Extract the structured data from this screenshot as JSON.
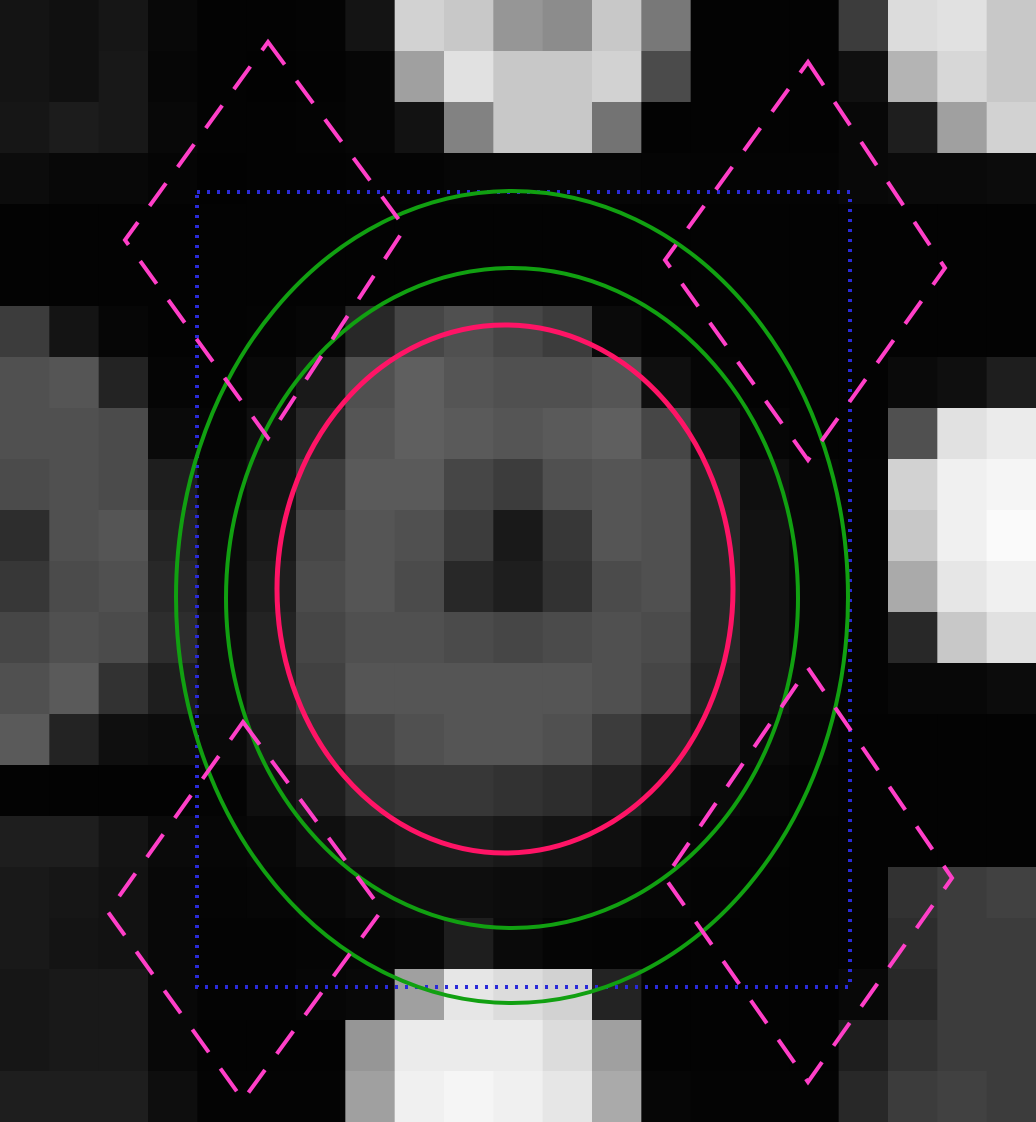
{
  "image": {
    "kind": "pixelated grayscale micrograph (zoomed crop)",
    "grid_columns": 21,
    "grid_rows": 22,
    "pixels": [
      [
        20,
        16,
        22,
        8,
        3,
        3,
        4,
        20,
        210,
        200,
        150,
        140,
        200,
        120,
        3,
        3,
        3,
        60,
        220,
        225,
        200
      ],
      [
        20,
        16,
        24,
        6,
        3,
        2,
        3,
        6,
        160,
        225,
        200,
        200,
        210,
        75,
        3,
        3,
        3,
        16,
        180,
        215,
        200
      ],
      [
        22,
        28,
        24,
        8,
        3,
        3,
        4,
        6,
        18,
        130,
        200,
        200,
        115,
        3,
        3,
        3,
        3,
        8,
        30,
        160,
        210
      ],
      [
        12,
        8,
        8,
        5,
        2,
        3,
        3,
        4,
        4,
        6,
        6,
        6,
        6,
        5,
        4,
        4,
        4,
        8,
        10,
        10,
        12
      ],
      [
        3,
        3,
        3,
        3,
        3,
        3,
        3,
        3,
        3,
        3,
        3,
        3,
        3,
        3,
        3,
        3,
        3,
        3,
        3,
        3,
        3
      ],
      [
        3,
        3,
        3,
        3,
        3,
        3,
        3,
        3,
        3,
        3,
        3,
        3,
        3,
        3,
        3,
        3,
        3,
        3,
        3,
        3,
        3
      ],
      [
        60,
        20,
        6,
        3,
        3,
        4,
        6,
        40,
        70,
        80,
        70,
        60,
        10,
        4,
        3,
        3,
        3,
        3,
        3,
        3,
        3
      ],
      [
        80,
        85,
        35,
        5,
        3,
        8,
        25,
        80,
        95,
        85,
        80,
        80,
        85,
        15,
        5,
        3,
        3,
        3,
        10,
        15,
        30
      ],
      [
        80,
        80,
        75,
        10,
        5,
        15,
        40,
        85,
        95,
        90,
        85,
        90,
        95,
        70,
        20,
        6,
        3,
        3,
        80,
        225,
        235
      ],
      [
        75,
        80,
        75,
        30,
        8,
        20,
        60,
        90,
        90,
        70,
        60,
        80,
        85,
        80,
        40,
        15,
        6,
        4,
        210,
        240,
        245
      ],
      [
        45,
        80,
        85,
        35,
        10,
        25,
        70,
        85,
        80,
        60,
        25,
        55,
        85,
        80,
        40,
        18,
        8,
        4,
        200,
        240,
        250
      ],
      [
        55,
        75,
        80,
        40,
        10,
        30,
        75,
        85,
        75,
        40,
        30,
        50,
        75,
        80,
        40,
        18,
        8,
        4,
        170,
        230,
        240
      ],
      [
        70,
        80,
        75,
        45,
        12,
        35,
        70,
        80,
        80,
        75,
        70,
        75,
        80,
        75,
        40,
        18,
        8,
        4,
        40,
        200,
        225
      ],
      [
        80,
        90,
        50,
        30,
        12,
        35,
        65,
        85,
        85,
        85,
        85,
        85,
        80,
        70,
        35,
        18,
        8,
        4,
        8,
        8,
        12
      ],
      [
        90,
        35,
        15,
        12,
        10,
        25,
        50,
        70,
        80,
        85,
        85,
        80,
        60,
        40,
        25,
        10,
        6,
        3,
        3,
        3,
        3
      ],
      [
        3,
        3,
        3,
        3,
        4,
        15,
        30,
        50,
        55,
        55,
        50,
        45,
        35,
        20,
        10,
        6,
        4,
        3,
        3,
        3,
        3
      ],
      [
        30,
        30,
        20,
        10,
        6,
        8,
        15,
        25,
        30,
        30,
        25,
        20,
        15,
        8,
        5,
        4,
        3,
        3,
        3,
        3,
        3
      ],
      [
        25,
        22,
        18,
        8,
        5,
        6,
        8,
        12,
        14,
        14,
        12,
        10,
        8,
        6,
        4,
        3,
        3,
        3,
        50,
        60,
        65
      ],
      [
        25,
        20,
        18,
        8,
        4,
        4,
        5,
        6,
        8,
        30,
        10,
        5,
        4,
        3,
        3,
        3,
        3,
        3,
        45,
        60,
        60
      ],
      [
        22,
        25,
        25,
        8,
        4,
        4,
        6,
        8,
        160,
        230,
        220,
        210,
        35,
        3,
        3,
        3,
        3,
        8,
        40,
        60,
        60
      ],
      [
        22,
        25,
        25,
        8,
        3,
        3,
        3,
        150,
        235,
        235,
        235,
        220,
        160,
        3,
        3,
        3,
        3,
        30,
        50,
        60,
        60
      ],
      [
        30,
        30,
        30,
        14,
        4,
        4,
        4,
        160,
        240,
        245,
        240,
        230,
        170,
        6,
        4,
        4,
        4,
        40,
        60,
        65,
        60
      ]
    ]
  },
  "overlays": {
    "roi_box": {
      "shape": "rectangle",
      "style": "dotted",
      "color": "#2a2ad8"
    },
    "inner_ellipse": {
      "shape": "ellipse",
      "color": "#ff1466"
    },
    "middle_ellipse": {
      "shape": "ellipse",
      "color": "#11a011"
    },
    "outer_ellipse": {
      "shape": "ellipse",
      "color": "#11a011"
    },
    "diamonds": {
      "shape": "diamond",
      "style": "dashed",
      "color": "#ff3fc8",
      "count": 4,
      "positions": [
        "top-left",
        "top-right",
        "bottom-left",
        "bottom-right"
      ]
    }
  }
}
